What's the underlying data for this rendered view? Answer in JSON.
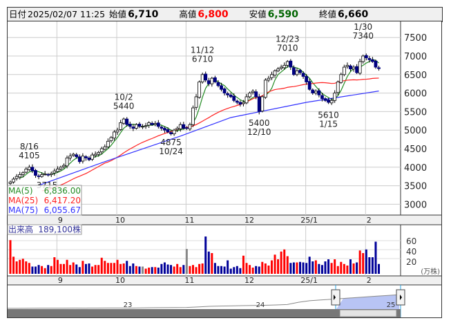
{
  "header": {
    "date_label": "日付",
    "datetime": "2025/02/07 11:25",
    "open_label": "始値",
    "open": "6,710",
    "high_label": "高値",
    "high": "6,800",
    "low_label": "安値",
    "low": "6,590",
    "close_label": "終値",
    "close": "6,660"
  },
  "colors": {
    "up_candle": "#ffffff",
    "down_candle": "#000080",
    "ma5": "#228b22",
    "ma25": "#ff2020",
    "ma75": "#3030ff",
    "vol_up": "#ff0000",
    "vol_down": "#000099",
    "vol_flat": "#888888",
    "nav_fill": "#b8c4f4"
  },
  "legend": {
    "ma5_label": "MA(5)",
    "ma5": "6,836.00",
    "ma25_label": "MA(25)",
    "ma25": "6,417.20",
    "ma75_label": "MA(75)",
    "ma75": "6,055.67"
  },
  "volume": {
    "label": "出来高",
    "value": "189,100株",
    "unit": "(万株)",
    "ticks": [
      "60",
      "40",
      "20"
    ]
  },
  "navigator": {
    "year_labels": [
      "23",
      "24",
      "25"
    ],
    "history": [
      3300,
      3300,
      3310,
      3320,
      3330,
      3330,
      3340,
      3330,
      3340,
      3350,
      3350,
      3340,
      3360,
      3380,
      3390,
      3400,
      3420,
      3480,
      3560,
      3600,
      3620,
      3650,
      3680,
      3700,
      3740,
      3800,
      4100,
      4300,
      4400,
      4500,
      4600,
      4700,
      4800,
      4900,
      5000,
      5100
    ]
  },
  "chart_data": {
    "type": "candlestick",
    "title": "",
    "price_axis": {
      "ticks": [
        7500,
        7000,
        6500,
        6000,
        5500,
        5000,
        4500,
        4000,
        3500,
        3000
      ],
      "range": [
        2800,
        7900
      ]
    },
    "month_labels": [
      {
        "label": "9",
        "index": 15
      },
      {
        "label": "10",
        "index": 34
      },
      {
        "label": "11",
        "index": 56
      },
      {
        "label": "12",
        "index": 75
      },
      {
        "label": "25/1",
        "index": 94
      },
      {
        "label": "2",
        "index": 113
      }
    ],
    "closes": [
      3600,
      3680,
      3750,
      3800,
      3850,
      3950,
      4000,
      3900,
      3780,
      3750,
      3800,
      3820,
      3800,
      3830,
      3900,
      3950,
      4000,
      4050,
      4250,
      4300,
      4350,
      4280,
      4150,
      4300,
      4250,
      4200,
      4330,
      4350,
      4400,
      4500,
      4550,
      4700,
      4800,
      4950,
      5000,
      5200,
      5300,
      5150,
      5100,
      5050,
      5150,
      5100,
      5100,
      5120,
      5200,
      5150,
      5180,
      5100,
      5050,
      5000,
      4950,
      4900,
      5000,
      5050,
      5150,
      5050,
      5050,
      5150,
      5600,
      5900,
      6300,
      6500,
      6350,
      6250,
      6400,
      6300,
      6200,
      6100,
      6000,
      5950,
      5900,
      5800,
      5750,
      5700,
      5750,
      5900,
      6000,
      6050,
      5900,
      5500,
      5900,
      6350,
      6400,
      6500,
      6600,
      6650,
      6700,
      6750,
      6850,
      6700,
      6500,
      6600,
      6550,
      6450,
      6300,
      6100,
      6000,
      6050,
      5950,
      5850,
      5800,
      5750,
      5800,
      6000,
      6300,
      6500,
      6700,
      6750,
      6650,
      6700,
      6550,
      6850,
      7000,
      6950,
      6900,
      6850,
      6700,
      6660
    ],
    "volumes": [
      65,
      33,
      24,
      27,
      29,
      24,
      21,
      14,
      14,
      17,
      15,
      11,
      17,
      15,
      32,
      27,
      19,
      19,
      27,
      17,
      22,
      18,
      13,
      25,
      19,
      20,
      14,
      17,
      17,
      31,
      25,
      21,
      21,
      21,
      27,
      19,
      20,
      25,
      15,
      20,
      15,
      14,
      14,
      10,
      12,
      13,
      13,
      12,
      19,
      22,
      18,
      17,
      14,
      19,
      13,
      17,
      48,
      15,
      17,
      13,
      19,
      20,
      72,
      43,
      40,
      21,
      15,
      15,
      14,
      26,
      10,
      13,
      15,
      11,
      35,
      21,
      17,
      12,
      15,
      14,
      23,
      20,
      16,
      26,
      37,
      28,
      43,
      47,
      34,
      21,
      22,
      22,
      23,
      22,
      21,
      33,
      24,
      26,
      19,
      17,
      24,
      28,
      21,
      28,
      15,
      23,
      19,
      16,
      28,
      20,
      22,
      45,
      40,
      47,
      32,
      32,
      62,
      19
    ],
    "ma75": [
      [
        9,
        3510
      ],
      [
        30,
        4150
      ],
      [
        54,
        4840
      ],
      [
        70,
        5340
      ],
      [
        94,
        5750
      ],
      [
        117,
        6056
      ]
    ],
    "annotations": [
      {
        "date": "8/16",
        "value": "4105",
        "index": 6,
        "price": 4105,
        "pos": "above"
      },
      {
        "date": "",
        "value": "3715",
        "index": 9,
        "price": 3715,
        "pos": "below1"
      },
      {
        "date": "10/2",
        "value": "5440",
        "index": 36,
        "price": 5440,
        "pos": "above"
      },
      {
        "date": "10/24",
        "value": "4875",
        "index": 51,
        "price": 4875,
        "pos": "below"
      },
      {
        "date": "11/12",
        "value": "6710",
        "index": 61,
        "price": 6710,
        "pos": "above"
      },
      {
        "date": "12/10",
        "value": "5400",
        "index": 79,
        "price": 5400,
        "pos": "below"
      },
      {
        "date": "12/23",
        "value": "7010",
        "index": 88,
        "price": 7010,
        "pos": "above"
      },
      {
        "date": "1/15",
        "value": "5610",
        "index": 101,
        "price": 5610,
        "pos": "below"
      },
      {
        "date": "1/30",
        "value": "7340",
        "index": 112,
        "price": 7340,
        "pos": "above"
      }
    ]
  }
}
